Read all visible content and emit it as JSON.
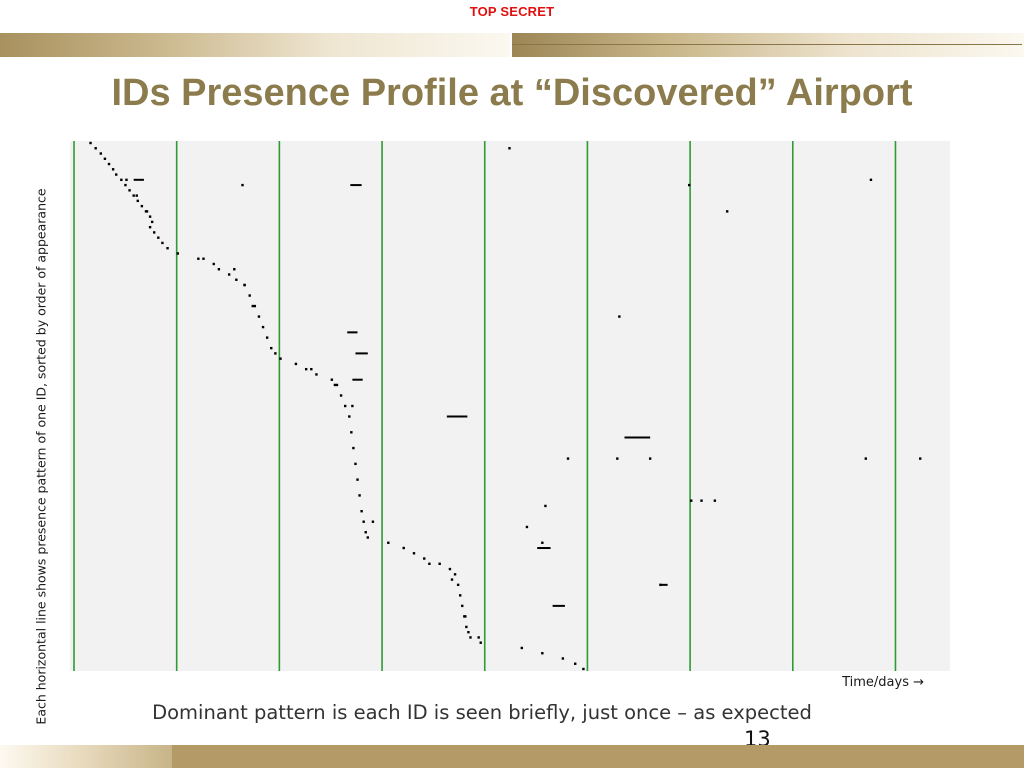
{
  "classification": "TOP SECRET",
  "slide": {
    "title": "IDs Presence Profile at “Discovered” Airport",
    "caption": "Dominant pattern is each ID is seen briefly, just once – as expected",
    "page_number": "13"
  },
  "colors": {
    "classification": "#e01010",
    "title": "#8c7b4d",
    "band_gold": "#b39a66",
    "plot_background": "#f2f2f2",
    "day_boundary": "#2e9b35",
    "marks": "#000000"
  },
  "chart_data": {
    "type": "scatter",
    "title": "",
    "xlabel": "Time/days →",
    "ylabel": "Each horizontal line shows presence pattern of one ID, sorted by order of appearance",
    "xlim": [
      0,
      8.57
    ],
    "ylim": [
      0,
      1
    ],
    "y_direction": "top-to-bottom",
    "grid": false,
    "vertical_lines_at_days": [
      0,
      1,
      2,
      3,
      4,
      5,
      6,
      7,
      8
    ],
    "series": [
      {
        "marker": "dot",
        "points": [
          [
            0.2,
            0.0
          ],
          [
            0.25,
            0.01
          ],
          [
            0.3,
            0.02
          ],
          [
            0.34,
            0.03
          ],
          [
            0.38,
            0.04
          ],
          [
            0.42,
            0.05
          ],
          [
            0.45,
            0.06
          ],
          [
            0.5,
            0.07
          ],
          [
            0.54,
            0.08
          ],
          [
            0.58,
            0.09
          ],
          [
            0.62,
            0.1
          ],
          [
            0.66,
            0.11
          ],
          [
            0.7,
            0.12
          ],
          [
            0.74,
            0.13
          ],
          [
            0.78,
            0.14
          ],
          [
            0.8,
            0.15
          ],
          [
            0.78,
            0.16
          ],
          [
            0.82,
            0.17
          ],
          [
            0.86,
            0.18
          ],
          [
            0.9,
            0.19
          ],
          [
            0.95,
            0.2
          ],
          [
            1.05,
            0.21
          ],
          [
            1.25,
            0.22
          ],
          [
            1.4,
            0.23
          ],
          [
            1.45,
            0.24
          ],
          [
            1.55,
            0.25
          ],
          [
            1.62,
            0.26
          ],
          [
            1.7,
            0.27
          ],
          [
            1.75,
            0.29
          ],
          [
            1.8,
            0.31
          ],
          [
            1.84,
            0.33
          ],
          [
            1.88,
            0.35
          ],
          [
            1.92,
            0.37
          ],
          [
            1.96,
            0.39
          ],
          [
            2.0,
            0.4
          ],
          [
            2.05,
            0.41
          ],
          [
            2.2,
            0.42
          ],
          [
            2.3,
            0.43
          ],
          [
            2.4,
            0.44
          ],
          [
            2.55,
            0.45
          ],
          [
            2.6,
            0.46
          ],
          [
            2.64,
            0.48
          ],
          [
            2.68,
            0.5
          ],
          [
            2.72,
            0.52
          ],
          [
            2.74,
            0.55
          ],
          [
            2.76,
            0.58
          ],
          [
            2.78,
            0.61
          ],
          [
            2.8,
            0.64
          ],
          [
            2.82,
            0.67
          ],
          [
            2.84,
            0.7
          ],
          [
            2.86,
            0.72
          ],
          [
            2.88,
            0.74
          ],
          [
            2.9,
            0.75
          ],
          [
            3.1,
            0.76
          ],
          [
            3.25,
            0.77
          ],
          [
            3.35,
            0.78
          ],
          [
            3.45,
            0.79
          ],
          [
            3.6,
            0.8
          ],
          [
            3.7,
            0.81
          ],
          [
            3.75,
            0.82
          ],
          [
            3.78,
            0.84
          ],
          [
            3.8,
            0.86
          ],
          [
            3.82,
            0.88
          ],
          [
            3.84,
            0.9
          ],
          [
            3.86,
            0.92
          ],
          [
            3.88,
            0.93
          ],
          [
            3.9,
            0.94
          ],
          [
            4.0,
            0.95
          ],
          [
            4.4,
            0.96
          ],
          [
            4.6,
            0.97
          ],
          [
            4.8,
            0.98
          ],
          [
            4.92,
            0.99
          ],
          [
            5.0,
            1.0
          ],
          [
            0.55,
            0.07
          ],
          [
            0.65,
            0.1
          ],
          [
            0.75,
            0.13
          ],
          [
            1.3,
            0.22
          ],
          [
            1.6,
            0.24
          ],
          [
            1.7,
            0.27
          ],
          [
            1.78,
            0.31
          ],
          [
            2.35,
            0.43
          ],
          [
            2.58,
            0.46
          ],
          [
            2.75,
            0.5
          ],
          [
            2.95,
            0.72
          ],
          [
            3.5,
            0.8
          ],
          [
            3.72,
            0.83
          ],
          [
            3.85,
            0.9
          ],
          [
            3.98,
            0.94
          ],
          [
            4.28,
            0.01
          ],
          [
            6.03,
            0.08
          ],
          [
            6.4,
            0.13
          ],
          [
            5.35,
            0.33
          ],
          [
            4.85,
            0.6
          ],
          [
            5.33,
            0.6
          ],
          [
            5.65,
            0.6
          ],
          [
            7.75,
            0.6
          ],
          [
            8.28,
            0.6
          ],
          [
            6.05,
            0.68
          ],
          [
            6.15,
            0.68
          ],
          [
            6.28,
            0.68
          ],
          [
            7.8,
            0.07
          ],
          [
            1.68,
            0.08
          ],
          [
            5.75,
            0.84
          ],
          [
            4.63,
            0.69
          ],
          [
            4.45,
            0.73
          ],
          [
            4.6,
            0.76
          ]
        ]
      },
      {
        "marker": "dash",
        "segments": [
          [
            0.62,
            0.72,
            0.07
          ],
          [
            2.73,
            2.84,
            0.08
          ],
          [
            3.67,
            3.87,
            0.52
          ],
          [
            5.4,
            5.65,
            0.56
          ],
          [
            2.7,
            2.8,
            0.36
          ],
          [
            2.78,
            2.9,
            0.4
          ],
          [
            2.75,
            2.85,
            0.45
          ],
          [
            4.55,
            4.68,
            0.77
          ],
          [
            4.7,
            4.82,
            0.88
          ],
          [
            5.75,
            5.82,
            0.84
          ]
        ]
      }
    ]
  }
}
